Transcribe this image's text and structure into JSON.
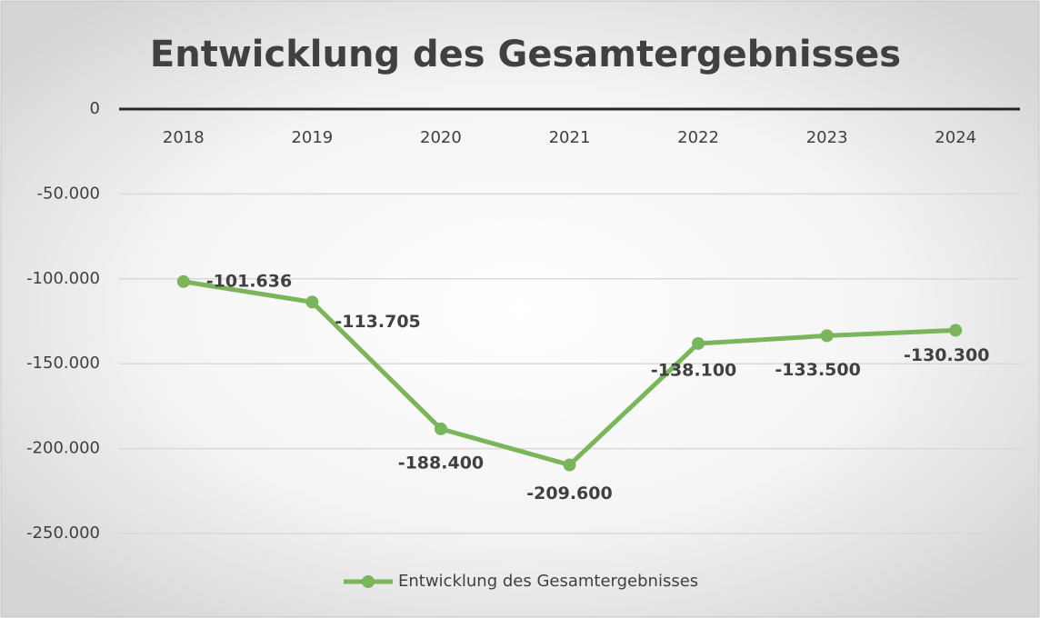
{
  "chart_data": {
    "type": "line",
    "title": "Entwicklung des Gesamtergebnisses",
    "categories": [
      "2018",
      "2019",
      "2020",
      "2021",
      "2022",
      "2023",
      "2024"
    ],
    "series": [
      {
        "name": "Entwicklung des Gesamtergebnisses",
        "color": "#7ab55c",
        "values": [
          -101636,
          -113705,
          -188400,
          -209600,
          -138100,
          -133500,
          -130300
        ],
        "value_labels": [
          "-101.636",
          "-113.705",
          "-188.400",
          "-209.600",
          "-138.100",
          "-133.500",
          "-130.300"
        ]
      }
    ],
    "ylim": [
      -250000,
      0
    ],
    "yticks": [
      {
        "value": -250000,
        "label": "-250.000"
      },
      {
        "value": -200000,
        "label": "-200.000"
      },
      {
        "value": -150000,
        "label": "-150.000"
      },
      {
        "value": -100000,
        "label": "-100.000"
      },
      {
        "value": -50000,
        "label": "-50.000"
      },
      0
    ],
    "grid": true,
    "legend": "bottom"
  }
}
